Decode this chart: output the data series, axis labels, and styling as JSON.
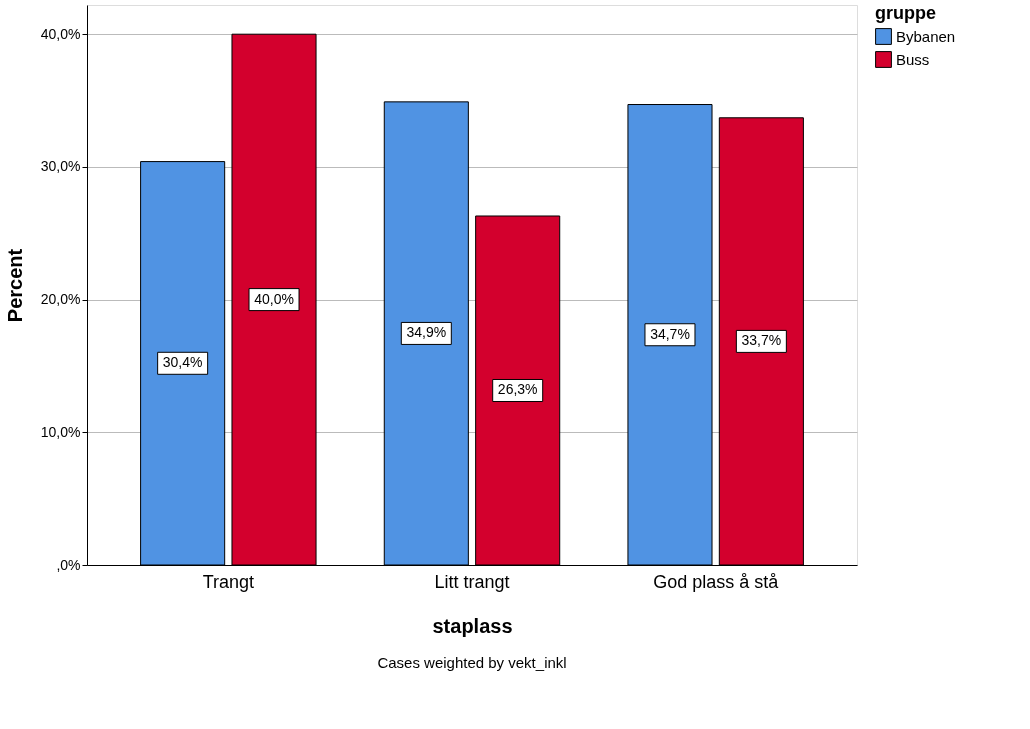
{
  "chart_data": {
    "type": "bar",
    "xlabel": "staplass",
    "ylabel": "Percent",
    "legend_title": "gruppe",
    "categories": [
      "Trangt",
      "Litt trangt",
      "God plass å stå"
    ],
    "series": [
      {
        "name": "Bybanen",
        "color": "#5093e3",
        "values": [
          30.4,
          34.9,
          34.7
        ],
        "value_labels": [
          "30,4%",
          "34,9%",
          "34,7%"
        ]
      },
      {
        "name": "Buss",
        "color": "#d3002d",
        "values": [
          40.0,
          26.3,
          33.7
        ],
        "value_labels": [
          "40,0%",
          "26,3%",
          "33,7%"
        ]
      }
    ],
    "ylim": [
      0,
      42.2
    ],
    "yticks": [
      {
        "value": 0,
        "label": ",0%"
      },
      {
        "value": 10,
        "label": "10,0%"
      },
      {
        "value": 20,
        "label": "20,0%"
      },
      {
        "value": 30,
        "label": "30,0%"
      },
      {
        "value": 40,
        "label": "40,0%"
      }
    ],
    "grid": "y",
    "legend": "top right",
    "annotations": [
      "Cases weighted by vekt_inkl"
    ]
  }
}
